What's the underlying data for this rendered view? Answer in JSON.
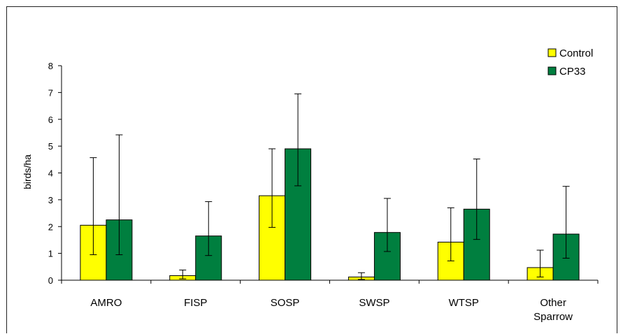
{
  "chart_data": {
    "type": "bar",
    "title": "",
    "xlabel": "",
    "ylabel": "birds/ha",
    "ylim": [
      0,
      8
    ],
    "yticks": [
      0,
      1,
      2,
      3,
      4,
      5,
      6,
      7,
      8
    ],
    "categories": [
      [
        "AMRO"
      ],
      [
        "FISP"
      ],
      [
        "SOSP"
      ],
      [
        "SWSP"
      ],
      [
        "WTSP"
      ],
      [
        "Other",
        "Sparrow"
      ]
    ],
    "series": [
      {
        "name": "Control",
        "color": "#ffff00",
        "values": [
          2.05,
          0.17,
          3.15,
          0.12,
          1.42,
          0.47
        ],
        "err_low": [
          0.95,
          0.05,
          1.97,
          0.03,
          0.72,
          0.12
        ],
        "err_high": [
          4.57,
          0.38,
          4.9,
          0.28,
          2.7,
          1.12
        ]
      },
      {
        "name": "CP33",
        "color": "#007f3f",
        "values": [
          2.25,
          1.65,
          4.9,
          1.78,
          2.65,
          1.72
        ],
        "err_low": [
          0.95,
          0.92,
          3.52,
          1.07,
          1.52,
          0.82
        ],
        "err_high": [
          5.42,
          2.93,
          6.95,
          3.05,
          4.52,
          3.5
        ]
      }
    ],
    "legend": {
      "position": "top-right"
    },
    "grid": false
  }
}
